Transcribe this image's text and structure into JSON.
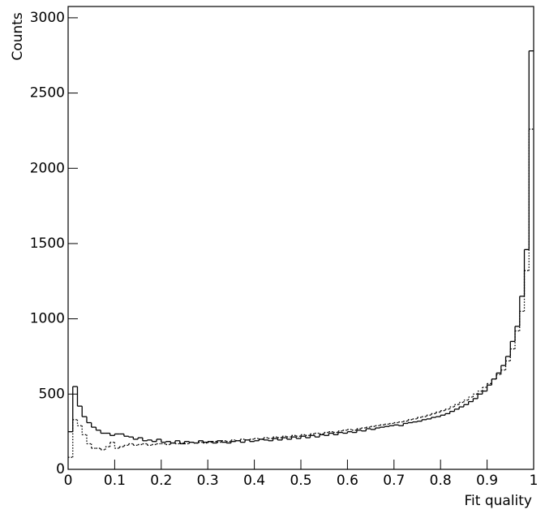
{
  "chart_data": {
    "type": "histogram",
    "xlabel": "Fit quality",
    "ylabel": "Counts",
    "xlim": [
      0,
      1
    ],
    "ylim": [
      0,
      3075
    ],
    "xticks": [
      0,
      0.1,
      0.2,
      0.3,
      0.4,
      0.5,
      0.6,
      0.7,
      0.8,
      0.9,
      1
    ],
    "yticks": [
      0,
      500,
      1000,
      1500,
      2000,
      2500,
      3000
    ],
    "bins": [
      0,
      0.01,
      0.02,
      0.03,
      0.04,
      0.05,
      0.06,
      0.07,
      0.08,
      0.09,
      0.1,
      0.11,
      0.12,
      0.13,
      0.14,
      0.15,
      0.16,
      0.17,
      0.18,
      0.19,
      0.2,
      0.21,
      0.22,
      0.23,
      0.24,
      0.25,
      0.26,
      0.27,
      0.28,
      0.29,
      0.3,
      0.31,
      0.32,
      0.33,
      0.34,
      0.35,
      0.36,
      0.37,
      0.38,
      0.39,
      0.4,
      0.41,
      0.42,
      0.43,
      0.44,
      0.45,
      0.46,
      0.47,
      0.48,
      0.49,
      0.5,
      0.51,
      0.52,
      0.53,
      0.54,
      0.55,
      0.56,
      0.57,
      0.58,
      0.59,
      0.6,
      0.61,
      0.62,
      0.63,
      0.64,
      0.65,
      0.66,
      0.67,
      0.68,
      0.69,
      0.7,
      0.71,
      0.72,
      0.73,
      0.74,
      0.75,
      0.76,
      0.77,
      0.78,
      0.79,
      0.8,
      0.81,
      0.82,
      0.83,
      0.84,
      0.85,
      0.86,
      0.87,
      0.88,
      0.89,
      0.9,
      0.91,
      0.92,
      0.93,
      0.94,
      0.95,
      0.96,
      0.97,
      0.98,
      0.99,
      1
    ],
    "series": [
      {
        "color": "#000000",
        "line_style": "solid",
        "values": [
          250,
          550,
          420,
          350,
          310,
          280,
          260,
          240,
          240,
          225,
          235,
          235,
          220,
          215,
          200,
          210,
          190,
          195,
          185,
          200,
          180,
          185,
          175,
          190,
          170,
          185,
          180,
          175,
          190,
          180,
          185,
          175,
          190,
          180,
          175,
          185,
          190,
          180,
          195,
          185,
          190,
          200,
          195,
          190,
          205,
          195,
          210,
          200,
          215,
          205,
          220,
          210,
          225,
          215,
          230,
          225,
          240,
          230,
          245,
          240,
          250,
          245,
          260,
          255,
          270,
          265,
          275,
          280,
          285,
          290,
          295,
          290,
          305,
          310,
          315,
          320,
          330,
          335,
          345,
          350,
          360,
          370,
          385,
          400,
          415,
          430,
          450,
          470,
          500,
          520,
          560,
          600,
          640,
          690,
          750,
          850,
          950,
          1150,
          1460,
          2780
        ]
      },
      {
        "color": "#000000",
        "line_style": "dotted",
        "values": [
          80,
          330,
          290,
          230,
          170,
          140,
          140,
          130,
          150,
          180,
          140,
          150,
          160,
          170,
          160,
          165,
          170,
          160,
          165,
          170,
          170,
          165,
          175,
          170,
          175,
          170,
          180,
          175,
          180,
          175,
          180,
          185,
          180,
          190,
          185,
          195,
          190,
          200,
          195,
          200,
          205,
          200,
          210,
          205,
          215,
          210,
          220,
          215,
          225,
          220,
          230,
          225,
          235,
          240,
          235,
          245,
          250,
          245,
          255,
          260,
          265,
          260,
          270,
          275,
          280,
          285,
          290,
          295,
          300,
          305,
          310,
          315,
          320,
          330,
          335,
          345,
          350,
          360,
          370,
          380,
          390,
          400,
          415,
          430,
          445,
          460,
          480,
          500,
          520,
          545,
          570,
          600,
          630,
          660,
          720,
          800,
          920,
          1050,
          1320,
          2260
        ]
      }
    ]
  }
}
